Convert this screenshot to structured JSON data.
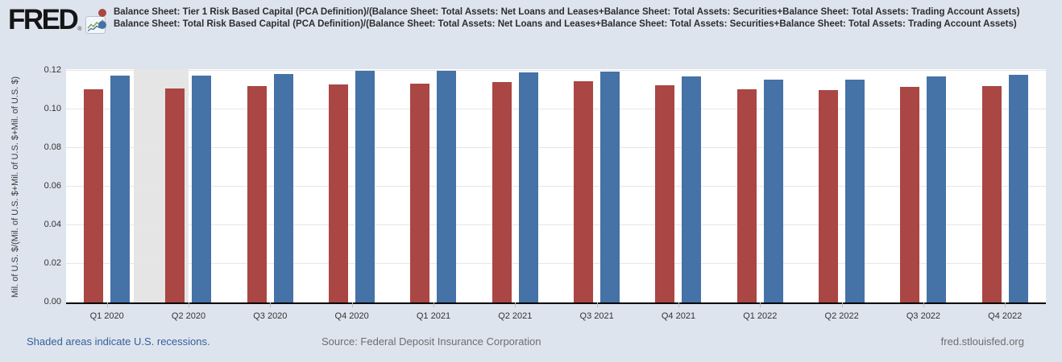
{
  "header": {
    "logo_text": "FRED",
    "logo_registered": "®"
  },
  "chart_data": {
    "type": "bar",
    "title": "",
    "categories": [
      "Q1 2020",
      "Q2 2020",
      "Q3 2020",
      "Q4 2020",
      "Q1 2021",
      "Q2 2021",
      "Q3 2021",
      "Q4 2021",
      "Q1 2022",
      "Q2 2022",
      "Q3 2022",
      "Q4 2022"
    ],
    "series": [
      {
        "name": "Balance Sheet: Tier 1 Risk Based Capital (PCA Definition)/(Balance Sheet: Total Assets: Net Loans and Leases+Balance Sheet: Total Assets: Securities+Balance Sheet: Total Assets: Trading Account Assets)",
        "color": "#aa4643",
        "values": [
          0.1105,
          0.111,
          0.112,
          0.113,
          0.1135,
          0.114,
          0.1145,
          0.1125,
          0.1105,
          0.11,
          0.1115,
          0.112
        ]
      },
      {
        "name": "Balance Sheet: Total Risk Based Capital (PCA Definition)/(Balance Sheet: Total Assets: Net Loans and Leases+Balance Sheet: Total Assets: Securities+Balance Sheet: Total Assets: Trading Account Assets)",
        "color": "#4572a7",
        "values": [
          0.1175,
          0.1175,
          0.1185,
          0.12,
          0.12,
          0.119,
          0.1195,
          0.117,
          0.1155,
          0.1155,
          0.117,
          0.118
        ]
      }
    ],
    "xlabel": "",
    "ylabel": "Mil. of U.S. $/(Mil. of U.S. $+Mil. of U.S. $+Mil. of U.S. $)",
    "yticks": [
      "0.00",
      "0.02",
      "0.04",
      "0.06",
      "0.08",
      "0.10",
      "0.12"
    ],
    "ylim": [
      0,
      0.12
    ],
    "grid": "horizontal",
    "legend_position": "top",
    "recession_band": {
      "note": "U.S. recession (2020)",
      "from_fraction": 0.069,
      "to_fraction": 0.125
    }
  },
  "footer": {
    "recession_note": "Shaded areas indicate U.S. recessions.",
    "source": "Source: Federal Deposit Insurance Corporation",
    "site": "fred.stlouisfed.org"
  }
}
